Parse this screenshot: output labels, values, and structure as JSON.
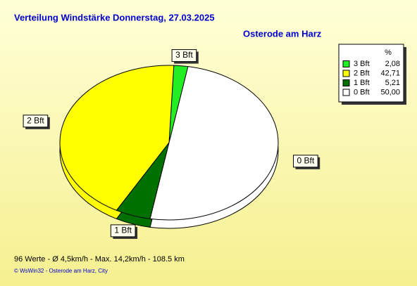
{
  "chart_data": {
    "type": "pie",
    "title": "Verteilung Windstärke  Donnerstag, 27.03.2025",
    "subtitle": "Osterode am Harz",
    "categories": [
      "3 Bft",
      "2 Bft",
      "1 Bft",
      "0 Bft"
    ],
    "values": [
      2.08,
      42.71,
      5.21,
      50.0
    ],
    "value_labels": [
      "2,08",
      "42,71",
      "5,21",
      "50,00"
    ],
    "colors": [
      "#22ee22",
      "#ffff00",
      "#007000",
      "#ffffff"
    ],
    "legend_header": "%",
    "footer": "96 Werte   -   Ø 4,5km/h  -  Max. 14,2km/h   -   108.5 km",
    "credit": "© WsWin32  -  Osterode am Harz, City"
  }
}
